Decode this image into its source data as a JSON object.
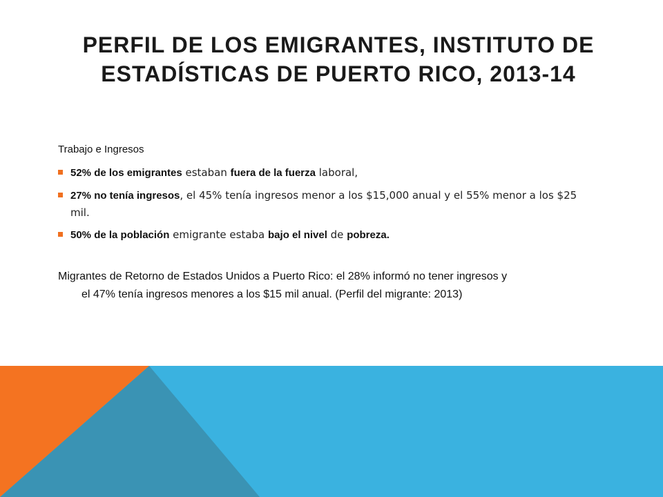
{
  "title": "PERFIL DE LOS EMIGRANTES, INSTITUTO DE ESTADÍSTICAS DE PUERTO RICO, 2013-14",
  "section_label": "Trabajo  e  Ingresos",
  "bullets": [
    {
      "parts": [
        {
          "text": "52% de los emigrantes",
          "style": "b"
        },
        {
          "text": " estaban ",
          "style": "thin"
        },
        {
          "text": "fuera de la fuerza",
          "style": "b"
        },
        {
          "text": " laboral,",
          "style": "thin"
        }
      ]
    },
    {
      "parts": [
        {
          "text": "27% no tenía ingresos",
          "style": "b"
        },
        {
          "text": ",  el 45% tenía ingresos menor a los $15,000 anual y el 55% menor a los $25 mil.",
          "style": "thin"
        }
      ]
    },
    {
      "parts": [
        {
          "text": "50% de la población",
          "style": "b"
        },
        {
          "text": " emigrante estaba ",
          "style": "thin"
        },
        {
          "text": "bajo el nivel",
          "style": "b"
        },
        {
          "text": " de ",
          "style": "thin"
        },
        {
          "text": "pobreza",
          "style": "b"
        },
        {
          "text": ".",
          "style": "b"
        }
      ]
    }
  ],
  "return_paragraph": {
    "line1": "Migrantes de Retorno  de Estados Unidos a Puerto Rico:  el 28% informó no tener ingresos y",
    "line2": "el 47% tenía ingresos menores a los $15 mil anual.  (Perfil del migrante: 2013)"
  },
  "colors": {
    "orange": "#f47321",
    "blue": "#3ab2e0",
    "teal": "#3a93b4",
    "bullet": "#f07020"
  }
}
